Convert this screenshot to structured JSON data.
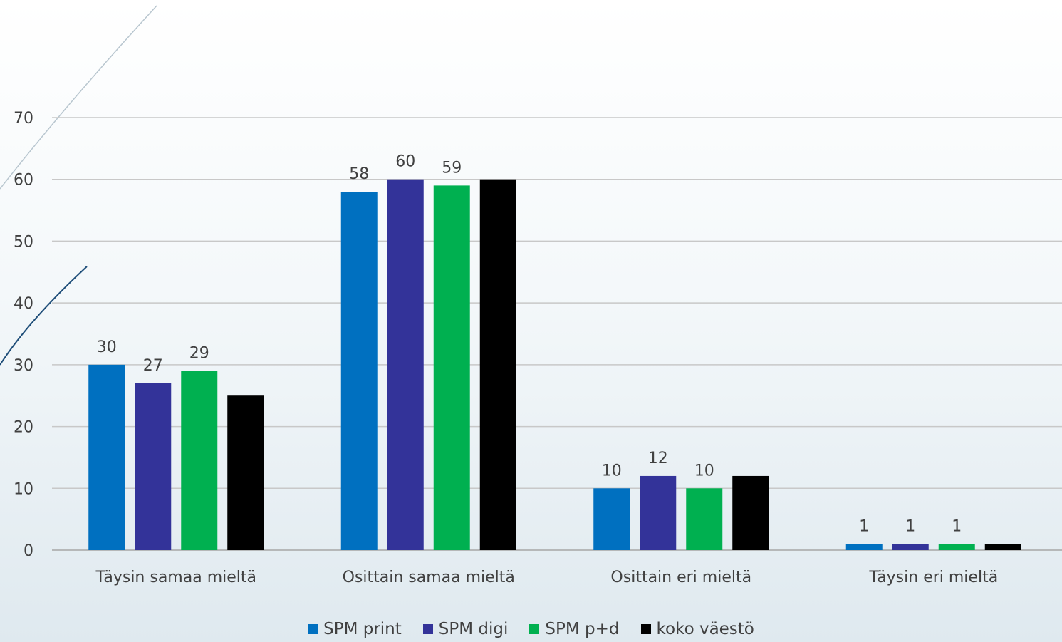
{
  "chart_data": {
    "type": "bar",
    "title": "",
    "xlabel": "",
    "ylabel": "",
    "ylim": [
      0,
      70
    ],
    "yticks": [
      "0",
      "10",
      "20",
      "30",
      "40",
      "50",
      "60",
      "70"
    ],
    "grid": true,
    "legend_position": "bottom",
    "categories": [
      "Täysin samaa mieltä",
      "Osittain samaa mieltä",
      "Osittain eri mieltä",
      "Täysin eri mieltä"
    ],
    "series": [
      {
        "name": "SPM print",
        "color": "#0070C0",
        "values": [
          30,
          58,
          10,
          1
        ],
        "labels": [
          "30",
          "58",
          "10",
          "1"
        ]
      },
      {
        "name": "SPM digi",
        "color": "#333399",
        "values": [
          27,
          60,
          12,
          1
        ],
        "labels": [
          "27",
          "60",
          "12",
          "1"
        ]
      },
      {
        "name": "SPM p+d",
        "color": "#00B050",
        "values": [
          29,
          59,
          10,
          1
        ],
        "labels": [
          "29",
          "59",
          "10",
          "1"
        ]
      },
      {
        "name": "koko väestö",
        "color": "#000000",
        "values": [
          25,
          60,
          12,
          1
        ],
        "labels": [
          "",
          "",
          "",
          ""
        ]
      }
    ]
  }
}
